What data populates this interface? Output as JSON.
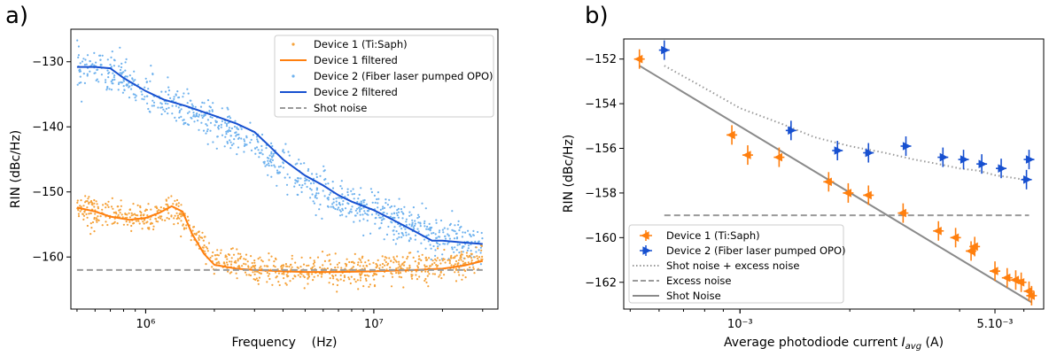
{
  "chart_data": [
    {
      "type": "scatter",
      "panel_label": "a)",
      "xlabel": "Frequency    (Hz)",
      "ylabel": "RIN (dBc/Hz)",
      "xscale": "log",
      "xlim": [
        470000,
        35000000
      ],
      "ylim": [
        -168,
        -125
      ],
      "xticks": [
        {
          "value": 1000000,
          "label": "10⁶"
        },
        {
          "value": 10000000,
          "label": "10⁷"
        }
      ],
      "yticks": [
        -160,
        -150,
        -140,
        -130
      ],
      "ytick_labels": [
        "−160",
        "−150",
        "−140",
        "−130"
      ],
      "legend_position": "top-right",
      "series": [
        {
          "name": "Device 1 (Ti:Saph)",
          "kind": "points",
          "color": "#f5a23a",
          "x": [
            500000,
            700000,
            1000000,
            1300000,
            1500000,
            2000000,
            3000000,
            5000000,
            10000000,
            20000000,
            30000000
          ],
          "y": [
            -152.3,
            -153.5,
            -154.0,
            -152.5,
            -155.0,
            -160.5,
            -161.8,
            -162.2,
            -162.0,
            -161.5,
            -160.5
          ]
        },
        {
          "name": "Device 1 filtered",
          "kind": "line",
          "color": "#ff7f0e",
          "x": [
            500000,
            600000,
            700000,
            850000,
            1000000,
            1150000,
            1300000,
            1450000,
            1600000,
            1800000,
            2000000,
            2500000,
            3000000,
            4000000,
            5000000,
            7000000,
            10000000,
            15000000,
            20000000,
            25000000,
            30000000
          ],
          "y": [
            -152.4,
            -153.0,
            -153.8,
            -154.3,
            -154.0,
            -153.2,
            -152.2,
            -153.0,
            -156.5,
            -159.5,
            -161.2,
            -161.8,
            -162.0,
            -162.2,
            -162.3,
            -162.3,
            -162.2,
            -162.0,
            -161.8,
            -161.3,
            -160.6
          ]
        },
        {
          "name": "Device 2 (Fiber laser pumped OPO)",
          "kind": "points",
          "color": "#6fb2ee",
          "x": [
            500000,
            700000,
            1000000,
            1500000,
            2000000,
            3000000,
            5000000,
            7000000,
            10000000,
            15000000,
            20000000,
            30000000
          ],
          "y": [
            -130.8,
            -131.5,
            -135.0,
            -137.5,
            -139.5,
            -143.0,
            -148.5,
            -151.0,
            -153.0,
            -155.5,
            -157.0,
            -158.0
          ]
        },
        {
          "name": "Device 2 filtered",
          "kind": "line",
          "color": "#1750d0",
          "x": [
            500000,
            600000,
            700000,
            800000,
            1000000,
            1200000,
            1500000,
            2000000,
            2500000,
            3000000,
            3500000,
            4000000,
            5000000,
            6000000,
            7000000,
            8000000,
            10000000,
            12000000,
            15000000,
            18000000,
            20000000,
            25000000,
            30000000
          ],
          "y": [
            -130.8,
            -130.8,
            -131.0,
            -132.5,
            -134.5,
            -135.8,
            -136.8,
            -138.3,
            -139.5,
            -140.8,
            -143.0,
            -145.0,
            -147.5,
            -149.0,
            -150.5,
            -151.5,
            -152.8,
            -154.2,
            -156.0,
            -157.5,
            -157.5,
            -157.8,
            -158.0
          ]
        },
        {
          "name": "Shot noise",
          "kind": "dashed",
          "color": "#9a9a9a",
          "x": [
            500000,
            30000000
          ],
          "y": [
            -162.0,
            -162.0
          ]
        }
      ]
    },
    {
      "type": "scatter",
      "panel_label": "b)",
      "xlabel": "Average photodiode current I_avg (A)",
      "ylabel": "RIN (dBc/Hz)",
      "xscale": "log",
      "xlim": [
        0.00048,
        0.0068
      ],
      "ylim": [
        -163.2,
        -151.1
      ],
      "xticks": [
        {
          "value": 0.001,
          "label": "10⁻³"
        },
        {
          "value": 0.005,
          "label": "5.10⁻³"
        }
      ],
      "yticks": [
        -162,
        -160,
        -158,
        -156,
        -154,
        -152
      ],
      "ytick_labels": [
        "−162",
        "−160",
        "−158",
        "−156",
        "−154",
        "−152"
      ],
      "legend_position": "bottom-left",
      "series": [
        {
          "name": "Device 1 (Ti:Saph)",
          "kind": "errorbar",
          "color": "#ff7f0e",
          "marker": "triangle-left",
          "x": [
            0.00053,
            0.00095,
            0.00105,
            0.00128,
            0.00175,
            0.00198,
            0.00225,
            0.0028,
            0.0035,
            0.0039,
            0.0043,
            0.0044,
            0.005,
            0.0054,
            0.0057,
            0.0059,
            0.0062,
            0.0063
          ],
          "y": [
            -152.0,
            -155.4,
            -156.3,
            -156.4,
            -157.5,
            -158.0,
            -158.1,
            -158.9,
            -159.7,
            -160.0,
            -160.6,
            -160.4,
            -161.5,
            -161.8,
            -161.9,
            -162.0,
            -162.4,
            -162.6
          ]
        },
        {
          "name": "Device 2 (Fiber laser pumped OPO)",
          "kind": "errorbar",
          "color": "#1750d0",
          "marker": "triangle-right",
          "x": [
            0.00062,
            0.00138,
            0.00185,
            0.00225,
            0.00285,
            0.0036,
            0.0041,
            0.0046,
            0.0052,
            0.0061,
            0.0062
          ],
          "y": [
            -151.6,
            -155.2,
            -156.1,
            -156.2,
            -155.9,
            -156.4,
            -156.5,
            -156.7,
            -156.9,
            -157.4,
            -156.5
          ]
        },
        {
          "name": "Shot noise + excess noise",
          "kind": "dotted",
          "color": "#9a9a9a",
          "x": [
            0.00062,
            0.0008,
            0.001,
            0.0013,
            0.0016,
            0.002,
            0.0025,
            0.003,
            0.0035,
            0.004,
            0.0045,
            0.005,
            0.0055,
            0.006,
            0.0062
          ],
          "y": [
            -152.3,
            -153.3,
            -154.2,
            -154.9,
            -155.5,
            -155.9,
            -156.2,
            -156.5,
            -156.7,
            -156.9,
            -157.0,
            -157.2,
            -157.3,
            -157.4,
            -157.5
          ]
        },
        {
          "name": "Excess noise",
          "kind": "dashed",
          "color": "#9a9a9a",
          "x": [
            0.00062,
            0.0062
          ],
          "y": [
            -159.0,
            -159.0
          ]
        },
        {
          "name": "Shot Noise",
          "kind": "line",
          "color": "#8a8a8a",
          "x": [
            0.00053,
            0.0063
          ],
          "y": [
            -152.3,
            -162.9
          ]
        }
      ]
    }
  ]
}
